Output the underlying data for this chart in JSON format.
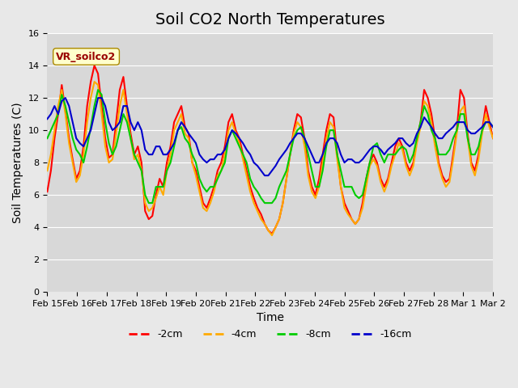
{
  "title": "Soil CO2 North Temperatures",
  "xlabel": "Time",
  "ylabel": "Soil Temperatures (C)",
  "ylim": [
    0,
    16
  ],
  "yticks": [
    0,
    2,
    4,
    6,
    8,
    10,
    12,
    14,
    16
  ],
  "legend_label": "VR_soilco2",
  "series_labels": [
    "-2cm",
    "-4cm",
    "-8cm",
    "-16cm"
  ],
  "series_colors": [
    "#ff0000",
    "#ffaa00",
    "#00cc00",
    "#0000cc"
  ],
  "background_color": "#e8e8e8",
  "plot_bg_color": "#d8d8d8",
  "x_labels": [
    "Feb 15",
    "Feb 16",
    "Feb 17",
    "Feb 18",
    "Feb 19",
    "Feb 20",
    "Feb 21",
    "Feb 22",
    "Feb 23",
    "Feb 24",
    "Feb 25",
    "Feb 26",
    "Feb 27",
    "Feb 28",
    "Mar 1",
    "Mar 2"
  ],
  "title_fontsize": 14,
  "axis_fontsize": 10,
  "tick_fontsize": 8,
  "line_width": 1.5,
  "m2cm_data": [
    6.2,
    7.5,
    9.5,
    11.0,
    12.8,
    11.2,
    9.5,
    8.2,
    7.0,
    7.5,
    9.0,
    11.5,
    13.0,
    14.0,
    13.5,
    11.5,
    9.5,
    8.3,
    8.5,
    10.5,
    12.5,
    13.3,
    11.5,
    9.8,
    8.5,
    9.0,
    8.0,
    5.0,
    4.5,
    4.7,
    6.0,
    7.0,
    6.5,
    8.0,
    9.0,
    10.5,
    11.0,
    11.5,
    10.2,
    9.8,
    8.0,
    7.5,
    6.5,
    5.5,
    5.2,
    5.8,
    6.5,
    7.5,
    8.0,
    9.0,
    10.5,
    11.0,
    10.0,
    9.5,
    8.5,
    7.5,
    6.5,
    5.8,
    5.2,
    4.8,
    4.2,
    3.8,
    3.6,
    4.0,
    4.5,
    5.5,
    7.0,
    8.5,
    10.0,
    11.0,
    10.8,
    9.5,
    7.5,
    6.5,
    6.0,
    7.0,
    8.5,
    10.0,
    11.0,
    10.8,
    8.5,
    6.5,
    5.5,
    5.0,
    4.5,
    4.2,
    4.5,
    5.5,
    7.0,
    8.0,
    8.5,
    8.0,
    7.0,
    6.5,
    7.0,
    8.0,
    9.0,
    9.5,
    9.0,
    8.0,
    7.5,
    8.0,
    9.5,
    10.5,
    12.5,
    12.0,
    11.0,
    9.5,
    8.0,
    7.2,
    6.8,
    7.0,
    8.5,
    10.0,
    12.5,
    12.0,
    9.8,
    8.0,
    7.5,
    8.5,
    10.0,
    11.5,
    10.5,
    9.5
  ],
  "m4cm_data": [
    7.5,
    8.5,
    10.0,
    11.5,
    12.5,
    11.0,
    9.2,
    8.0,
    6.8,
    7.2,
    8.5,
    10.5,
    12.0,
    13.0,
    12.8,
    11.0,
    9.0,
    8.0,
    8.2,
    9.8,
    11.5,
    12.5,
    11.0,
    9.5,
    8.2,
    8.5,
    7.5,
    5.5,
    5.0,
    5.2,
    5.8,
    6.5,
    6.0,
    7.5,
    8.5,
    10.0,
    10.5,
    11.0,
    9.8,
    9.5,
    8.0,
    7.2,
    6.2,
    5.2,
    5.0,
    5.5,
    6.2,
    7.2,
    7.5,
    8.5,
    10.0,
    10.5,
    9.8,
    9.2,
    8.2,
    7.2,
    6.2,
    5.5,
    5.0,
    4.5,
    4.2,
    3.8,
    3.5,
    4.0,
    4.5,
    5.5,
    7.0,
    8.5,
    9.8,
    10.5,
    10.2,
    9.0,
    7.2,
    6.2,
    5.8,
    6.5,
    8.0,
    9.5,
    10.5,
    10.2,
    8.2,
    6.5,
    5.2,
    4.8,
    4.5,
    4.2,
    4.5,
    5.2,
    6.5,
    7.8,
    8.2,
    7.8,
    6.8,
    6.2,
    6.8,
    7.8,
    8.5,
    9.2,
    8.8,
    7.8,
    7.2,
    7.8,
    9.2,
    10.2,
    11.8,
    11.5,
    10.5,
    9.0,
    7.8,
    7.0,
    6.5,
    6.8,
    8.2,
    9.8,
    11.2,
    11.5,
    9.5,
    7.8,
    7.2,
    8.2,
    9.8,
    11.0,
    10.2,
    9.5
  ],
  "m8cm_data": [
    9.5,
    10.0,
    10.5,
    11.0,
    12.2,
    11.5,
    10.5,
    9.5,
    8.8,
    8.5,
    8.0,
    9.0,
    10.2,
    11.5,
    12.5,
    12.2,
    10.5,
    9.2,
    8.5,
    9.0,
    10.0,
    11.0,
    10.5,
    9.5,
    8.5,
    8.0,
    7.5,
    6.0,
    5.5,
    5.5,
    6.5,
    6.5,
    6.5,
    7.5,
    8.0,
    9.0,
    10.0,
    10.2,
    9.5,
    9.2,
    8.5,
    8.0,
    7.0,
    6.5,
    6.2,
    6.5,
    6.5,
    7.0,
    7.5,
    8.0,
    9.5,
    10.0,
    9.5,
    9.0,
    8.5,
    8.0,
    7.0,
    6.5,
    6.2,
    5.8,
    5.5,
    5.5,
    5.5,
    5.8,
    6.5,
    7.0,
    7.5,
    8.5,
    9.5,
    10.0,
    10.2,
    9.5,
    8.5,
    7.5,
    6.5,
    6.5,
    7.5,
    9.0,
    10.0,
    10.0,
    8.5,
    7.5,
    6.5,
    6.5,
    6.5,
    6.0,
    5.8,
    6.0,
    7.0,
    8.0,
    9.0,
    9.2,
    8.5,
    8.0,
    8.5,
    8.5,
    8.5,
    8.8,
    9.0,
    8.8,
    8.0,
    8.5,
    9.5,
    10.5,
    11.5,
    11.0,
    10.0,
    9.5,
    8.5,
    8.5,
    8.5,
    8.8,
    9.5,
    10.0,
    11.0,
    11.0,
    9.5,
    8.5,
    8.5,
    9.0,
    10.0,
    10.5,
    10.5,
    10.2
  ],
  "m16cm_data": [
    10.7,
    11.0,
    11.5,
    11.0,
    11.8,
    12.0,
    11.5,
    10.5,
    9.5,
    9.2,
    9.0,
    9.5,
    10.0,
    11.0,
    12.0,
    12.0,
    11.5,
    10.5,
    10.0,
    10.2,
    10.5,
    11.5,
    11.5,
    10.5,
    10.0,
    10.5,
    10.0,
    8.8,
    8.5,
    8.5,
    9.0,
    9.0,
    8.5,
    8.5,
    8.8,
    9.2,
    10.0,
    10.5,
    10.2,
    9.8,
    9.5,
    9.2,
    8.5,
    8.2,
    8.0,
    8.2,
    8.2,
    8.5,
    8.5,
    8.8,
    9.5,
    10.0,
    9.8,
    9.5,
    9.2,
    8.8,
    8.5,
    8.0,
    7.8,
    7.5,
    7.2,
    7.2,
    7.5,
    7.8,
    8.2,
    8.5,
    8.8,
    9.2,
    9.5,
    9.8,
    9.8,
    9.5,
    9.0,
    8.5,
    8.0,
    8.0,
    8.5,
    9.2,
    9.5,
    9.5,
    9.2,
    8.5,
    8.0,
    8.2,
    8.2,
    8.0,
    8.0,
    8.2,
    8.5,
    8.8,
    9.0,
    9.0,
    8.8,
    8.5,
    8.8,
    9.0,
    9.2,
    9.5,
    9.5,
    9.2,
    9.0,
    9.2,
    9.8,
    10.2,
    10.8,
    10.5,
    10.2,
    9.8,
    9.5,
    9.5,
    9.8,
    10.0,
    10.2,
    10.5,
    10.5,
    10.5,
    10.0,
    9.8,
    9.8,
    10.0,
    10.2,
    10.5,
    10.5,
    10.2
  ]
}
